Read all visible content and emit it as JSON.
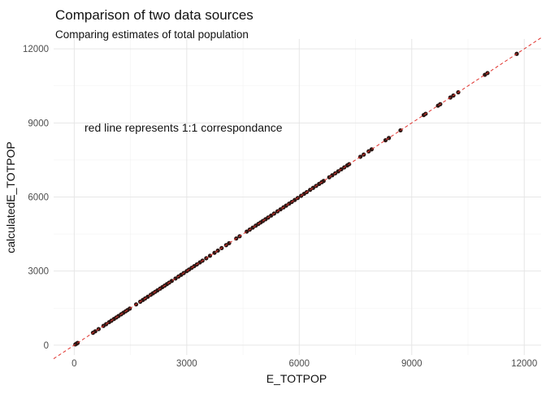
{
  "chart_data": {
    "type": "scatter",
    "title": "Comparison of two data sources",
    "subtitle": "Comparing estimates of total population",
    "xlabel": "E_TOTPOP",
    "ylabel": "calculatedE_TOTPOP",
    "annotation": "red line represents 1:1 correspondance",
    "xlim": [
      -550,
      12450
    ],
    "ylim": [
      -400,
      12400
    ],
    "xticks": [
      0,
      3000,
      6000,
      9000,
      12000
    ],
    "yticks": [
      0,
      3000,
      6000,
      9000,
      12000
    ],
    "grid": true,
    "reference_line": {
      "slope": 1,
      "intercept": 0,
      "color": "#e0302b",
      "style": "dashed"
    },
    "point_color": "#2b1714",
    "points": [
      [
        30,
        30
      ],
      [
        60,
        60
      ],
      [
        90,
        90
      ],
      [
        500,
        500
      ],
      [
        560,
        560
      ],
      [
        650,
        650
      ],
      [
        780,
        780
      ],
      [
        850,
        850
      ],
      [
        930,
        930
      ],
      [
        990,
        990
      ],
      [
        1060,
        1060
      ],
      [
        1120,
        1120
      ],
      [
        1180,
        1180
      ],
      [
        1250,
        1250
      ],
      [
        1310,
        1310
      ],
      [
        1370,
        1370
      ],
      [
        1420,
        1420
      ],
      [
        1480,
        1480
      ],
      [
        1650,
        1650
      ],
      [
        1760,
        1760
      ],
      [
        1830,
        1830
      ],
      [
        1890,
        1890
      ],
      [
        1960,
        1960
      ],
      [
        2040,
        2040
      ],
      [
        2100,
        2100
      ],
      [
        2160,
        2160
      ],
      [
        2220,
        2220
      ],
      [
        2290,
        2290
      ],
      [
        2350,
        2350
      ],
      [
        2410,
        2410
      ],
      [
        2470,
        2470
      ],
      [
        2530,
        2530
      ],
      [
        2600,
        2600
      ],
      [
        2700,
        2700
      ],
      [
        2780,
        2780
      ],
      [
        2850,
        2850
      ],
      [
        2920,
        2920
      ],
      [
        3000,
        3000
      ],
      [
        3060,
        3060
      ],
      [
        3130,
        3130
      ],
      [
        3200,
        3200
      ],
      [
        3270,
        3270
      ],
      [
        3350,
        3350
      ],
      [
        3420,
        3420
      ],
      [
        3520,
        3520
      ],
      [
        3620,
        3620
      ],
      [
        3740,
        3740
      ],
      [
        3830,
        3830
      ],
      [
        3930,
        3930
      ],
      [
        4050,
        4050
      ],
      [
        4130,
        4130
      ],
      [
        4320,
        4320
      ],
      [
        4410,
        4410
      ],
      [
        4600,
        4600
      ],
      [
        4680,
        4680
      ],
      [
        4760,
        4760
      ],
      [
        4840,
        4840
      ],
      [
        4910,
        4910
      ],
      [
        4970,
        4970
      ],
      [
        5030,
        5030
      ],
      [
        5100,
        5100
      ],
      [
        5170,
        5170
      ],
      [
        5250,
        5250
      ],
      [
        5330,
        5330
      ],
      [
        5420,
        5420
      ],
      [
        5500,
        5500
      ],
      [
        5580,
        5580
      ],
      [
        5650,
        5650
      ],
      [
        5730,
        5730
      ],
      [
        5800,
        5800
      ],
      [
        5880,
        5880
      ],
      [
        5960,
        5960
      ],
      [
        6050,
        6050
      ],
      [
        6130,
        6130
      ],
      [
        6200,
        6200
      ],
      [
        6290,
        6290
      ],
      [
        6370,
        6370
      ],
      [
        6450,
        6450
      ],
      [
        6530,
        6530
      ],
      [
        6600,
        6600
      ],
      [
        6650,
        6650
      ],
      [
        6800,
        6800
      ],
      [
        6880,
        6880
      ],
      [
        6960,
        6960
      ],
      [
        7040,
        7040
      ],
      [
        7120,
        7120
      ],
      [
        7200,
        7200
      ],
      [
        7280,
        7280
      ],
      [
        7330,
        7330
      ],
      [
        7630,
        7630
      ],
      [
        7720,
        7720
      ],
      [
        7850,
        7850
      ],
      [
        7930,
        7930
      ],
      [
        8300,
        8300
      ],
      [
        8390,
        8390
      ],
      [
        8700,
        8700
      ],
      [
        9320,
        9320
      ],
      [
        9370,
        9370
      ],
      [
        9700,
        9700
      ],
      [
        9760,
        9760
      ],
      [
        10030,
        10030
      ],
      [
        10110,
        10110
      ],
      [
        10240,
        10240
      ],
      [
        10950,
        10950
      ],
      [
        11020,
        11020
      ],
      [
        11800,
        11800
      ]
    ]
  }
}
